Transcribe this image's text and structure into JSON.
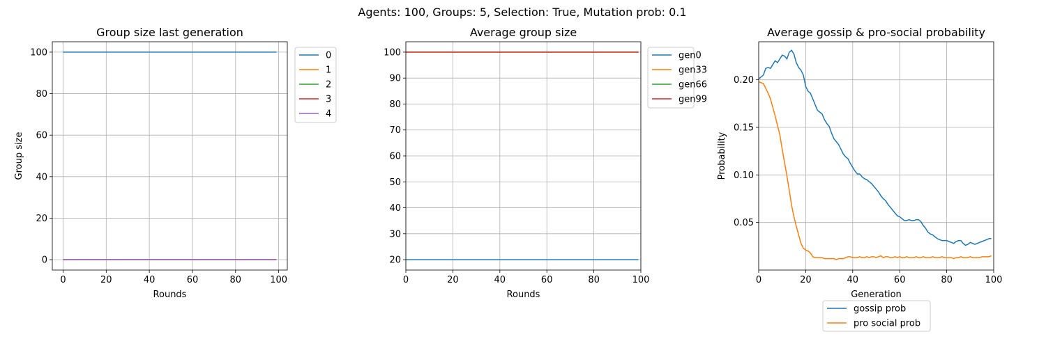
{
  "suptitle": "Agents: 100, Groups: 5, Selection: True, Mutation prob: 0.1",
  "colors": [
    "#1f77b4",
    "#ff7f0e",
    "#2ca02c",
    "#d62728",
    "#9467bd"
  ],
  "chart_data": [
    {
      "type": "line",
      "title": "Group size last generation",
      "xlabel": "Rounds",
      "ylabel": "Group size",
      "xlim": [
        -5,
        104
      ],
      "ylim": [
        -5,
        105
      ],
      "xticks": [
        0,
        20,
        40,
        60,
        80,
        100
      ],
      "yticks": [
        0,
        20,
        40,
        60,
        80,
        100
      ],
      "grid": true,
      "legend_position": "outside-right",
      "x": [
        0,
        99
      ],
      "series": [
        {
          "name": "0",
          "values": [
            100,
            100
          ]
        },
        {
          "name": "1",
          "values": [
            0,
            0
          ]
        },
        {
          "name": "2",
          "values": [
            0,
            0
          ]
        },
        {
          "name": "3",
          "values": [
            0,
            0
          ]
        },
        {
          "name": "4",
          "values": [
            0,
            0
          ]
        }
      ]
    },
    {
      "type": "line",
      "title": "Average group size",
      "xlabel": "Rounds",
      "ylabel": "",
      "xlim": [
        0,
        100
      ],
      "ylim": [
        16,
        104
      ],
      "xticks": [
        0,
        20,
        40,
        60,
        80,
        100
      ],
      "yticks": [
        20,
        30,
        40,
        50,
        60,
        70,
        80,
        90,
        100
      ],
      "grid": true,
      "legend_position": "outside-right",
      "x": [
        0,
        99
      ],
      "series": [
        {
          "name": "gen0",
          "values": [
            20,
            20
          ]
        },
        {
          "name": "gen33",
          "values": [
            100,
            100
          ]
        },
        {
          "name": "gen66",
          "values": [
            100,
            100
          ]
        },
        {
          "name": "gen99",
          "values": [
            100,
            100
          ]
        }
      ]
    },
    {
      "type": "line",
      "title": "Average gossip & pro-social probability",
      "xlabel": "Generation",
      "ylabel": "Probability",
      "xlim": [
        0,
        100
      ],
      "ylim": [
        0.0,
        0.24
      ],
      "xticks": [
        0,
        20,
        40,
        60,
        80,
        100
      ],
      "yticks": [
        0.05,
        0.1,
        0.15,
        0.2
      ],
      "ytick_labels": [
        "0.05",
        "0.10",
        "0.15",
        "0.20"
      ],
      "grid": true,
      "legend_position": "below",
      "x_start": 0,
      "x_step": 1,
      "series": [
        {
          "name": "gossip prob",
          "values": [
            0.201,
            0.203,
            0.205,
            0.212,
            0.213,
            0.212,
            0.216,
            0.22,
            0.218,
            0.222,
            0.226,
            0.225,
            0.222,
            0.229,
            0.231,
            0.227,
            0.218,
            0.213,
            0.21,
            0.205,
            0.193,
            0.188,
            0.186,
            0.18,
            0.174,
            0.168,
            0.166,
            0.164,
            0.158,
            0.154,
            0.151,
            0.144,
            0.138,
            0.135,
            0.132,
            0.127,
            0.122,
            0.119,
            0.117,
            0.112,
            0.108,
            0.104,
            0.101,
            0.101,
            0.098,
            0.096,
            0.095,
            0.093,
            0.091,
            0.088,
            0.085,
            0.082,
            0.078,
            0.075,
            0.073,
            0.069,
            0.066,
            0.063,
            0.06,
            0.057,
            0.056,
            0.054,
            0.052,
            0.052,
            0.053,
            0.052,
            0.052,
            0.053,
            0.053,
            0.051,
            0.047,
            0.044,
            0.04,
            0.038,
            0.037,
            0.035,
            0.033,
            0.032,
            0.031,
            0.031,
            0.031,
            0.03,
            0.029,
            0.028,
            0.03,
            0.031,
            0.031,
            0.028,
            0.026,
            0.027,
            0.029,
            0.028,
            0.027,
            0.028,
            0.029,
            0.03,
            0.031,
            0.032,
            0.033,
            0.033
          ]
        },
        {
          "name": "pro social prob",
          "values": [
            0.198,
            0.197,
            0.196,
            0.191,
            0.186,
            0.18,
            0.171,
            0.162,
            0.152,
            0.142,
            0.127,
            0.113,
            0.099,
            0.084,
            0.068,
            0.056,
            0.046,
            0.037,
            0.028,
            0.023,
            0.021,
            0.02,
            0.018,
            0.014,
            0.013,
            0.013,
            0.013,
            0.013,
            0.012,
            0.012,
            0.012,
            0.012,
            0.012,
            0.011,
            0.012,
            0.012,
            0.012,
            0.013,
            0.014,
            0.014,
            0.013,
            0.013,
            0.013,
            0.014,
            0.013,
            0.013,
            0.014,
            0.013,
            0.014,
            0.014,
            0.013,
            0.014,
            0.015,
            0.013,
            0.014,
            0.014,
            0.013,
            0.013,
            0.014,
            0.013,
            0.014,
            0.013,
            0.013,
            0.014,
            0.013,
            0.013,
            0.013,
            0.014,
            0.013,
            0.013,
            0.014,
            0.013,
            0.013,
            0.013,
            0.014,
            0.013,
            0.013,
            0.013,
            0.014,
            0.013,
            0.013,
            0.013,
            0.013,
            0.012,
            0.013,
            0.013,
            0.014,
            0.013,
            0.013,
            0.013,
            0.014,
            0.013,
            0.013,
            0.013,
            0.013,
            0.014,
            0.014,
            0.014,
            0.014,
            0.015
          ]
        }
      ]
    }
  ]
}
